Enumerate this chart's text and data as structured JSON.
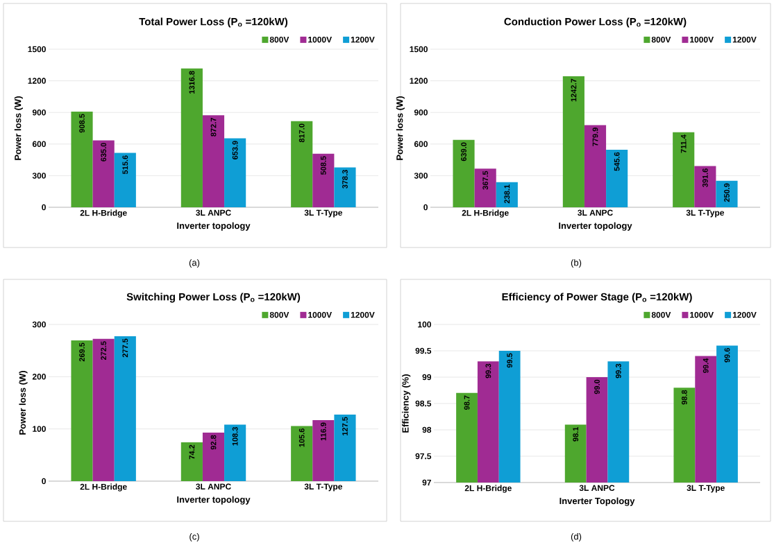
{
  "chart_data": [
    {
      "type": "bar",
      "title": "Total Power Loss (P$_{o}$ =120kW)",
      "xlabel": "Inverter topology",
      "ylabel": "Power loss (W)",
      "categories": [
        "2L H-Bridge",
        "3L ANPC",
        "3L T-Type"
      ],
      "ylim": [
        0,
        1500
      ],
      "yticks": [
        0,
        300,
        600,
        900,
        1200,
        1500
      ],
      "grid": "y",
      "legend": "top right",
      "annotations": [
        "(a)"
      ],
      "series": [
        {
          "name": "800V",
          "color": "#4ea72e",
          "values": [
            908.5,
            1316.8,
            817.0
          ],
          "value_labels": [
            "908.5",
            "1316.8",
            "817.0"
          ]
        },
        {
          "name": "1000V",
          "color": "#a02b93",
          "values": [
            635.0,
            872.7,
            508.5
          ],
          "value_labels": [
            "635.0",
            "872.7",
            "508.5"
          ]
        },
        {
          "name": "1200V",
          "color": "#0f9ed5",
          "values": [
            515.6,
            653.9,
            378.3
          ],
          "value_labels": [
            "515.6",
            "653.9",
            "378.3"
          ]
        }
      ]
    },
    {
      "type": "bar",
      "title": "Conduction Power Loss (P$_{o}$ =120kW)",
      "xlabel": "Inverter topology",
      "ylabel": "Power loss (W)",
      "categories": [
        "2L H-Bridge",
        "3L ANPC",
        "3L T-Type"
      ],
      "ylim": [
        0,
        1500
      ],
      "yticks": [
        0,
        300,
        600,
        900,
        1200,
        1500
      ],
      "grid": "y",
      "legend": "top right",
      "annotations": [
        "(b)"
      ],
      "series": [
        {
          "name": "800V",
          "color": "#4ea72e",
          "values": [
            639.0,
            1242.7,
            711.4
          ],
          "value_labels": [
            "639.0",
            "1242.7",
            "711.4"
          ]
        },
        {
          "name": "1000V",
          "color": "#a02b93",
          "values": [
            367.5,
            779.9,
            391.6
          ],
          "value_labels": [
            "367.5",
            "779.9",
            "391.6"
          ]
        },
        {
          "name": "1200V",
          "color": "#0f9ed5",
          "values": [
            238.1,
            545.6,
            250.9
          ],
          "value_labels": [
            "238.1",
            "545.6",
            "250.9"
          ]
        }
      ]
    },
    {
      "type": "bar",
      "title": "Switching Power Loss (P$_{o}$ =120kW)",
      "xlabel": "Inverter topology",
      "ylabel": "Power loss (W)",
      "categories": [
        "2L H-Bridge",
        "3L ANPC",
        "3L T-Type"
      ],
      "ylim": [
        0,
        300
      ],
      "yticks": [
        0,
        100,
        200,
        300
      ],
      "grid": "y",
      "legend": "top right",
      "annotations": [
        "(c)"
      ],
      "series": [
        {
          "name": "800V",
          "color": "#4ea72e",
          "values": [
            269.5,
            74.2,
            105.6
          ],
          "value_labels": [
            "269.5",
            "74.2",
            "105.6"
          ]
        },
        {
          "name": "1000V",
          "color": "#a02b93",
          "values": [
            272.5,
            92.8,
            116.9
          ],
          "value_labels": [
            "272.5",
            "92.8",
            "116.9"
          ]
        },
        {
          "name": "1200V",
          "color": "#0f9ed5",
          "values": [
            277.5,
            108.3,
            127.5
          ],
          "value_labels": [
            "277.5",
            "108.3",
            "127.5"
          ]
        }
      ]
    },
    {
      "type": "bar",
      "title": "Efficiency of Power Stage (P$_{o}$ =120kW)",
      "xlabel": "Inverter Topology",
      "ylabel": "Efficiency (%)",
      "categories": [
        "2L H-Bridge",
        "3L ANPC",
        "3L T-Type"
      ],
      "ylim": [
        97,
        100
      ],
      "yticks": [
        97,
        97.5,
        98,
        98.5,
        99,
        99.5,
        100
      ],
      "grid": "y",
      "legend": "top right",
      "annotations": [
        "(d)"
      ],
      "series": [
        {
          "name": "800V",
          "color": "#4ea72e",
          "values": [
            98.7,
            98.1,
            98.8
          ],
          "value_labels": [
            "98.7",
            "98.1",
            "98.8"
          ]
        },
        {
          "name": "1000V",
          "color": "#a02b93",
          "values": [
            99.3,
            99.0,
            99.4
          ],
          "value_labels": [
            "99.3",
            "99.0",
            "99.4"
          ]
        },
        {
          "name": "1200V",
          "color": "#0f9ed5",
          "values": [
            99.5,
            99.3,
            99.6
          ],
          "value_labels": [
            "99.5",
            "99.3",
            "99.6"
          ]
        }
      ]
    }
  ]
}
